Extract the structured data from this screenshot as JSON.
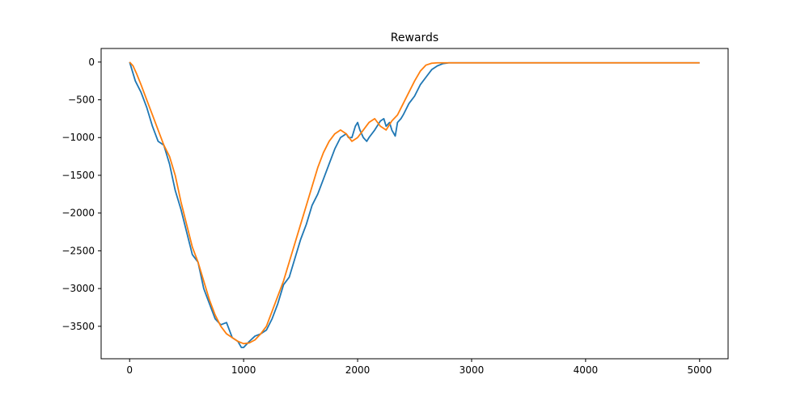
{
  "chart_data": {
    "type": "line",
    "title": "Rewards",
    "xlabel": "",
    "ylabel": "",
    "xlim": [
      -250,
      5250
    ],
    "ylim": [
      -3930,
      180
    ],
    "xticks": [
      0,
      1000,
      2000,
      3000,
      4000,
      5000
    ],
    "yticks": [
      0,
      -500,
      -1000,
      -1500,
      -2000,
      -2500,
      -3000,
      -3500
    ],
    "xtick_labels": [
      "0",
      "1000",
      "2000",
      "3000",
      "4000",
      "5000"
    ],
    "ytick_labels": [
      "0",
      "−500",
      "−1000",
      "−1500",
      "−2000",
      "−2500",
      "−3000",
      "−3500"
    ],
    "grid": false,
    "legend": false,
    "series": [
      {
        "color": "#1f77b4",
        "x": [
          0,
          50,
          100,
          150,
          200,
          250,
          280,
          300,
          350,
          400,
          450,
          500,
          550,
          600,
          650,
          700,
          750,
          800,
          850,
          900,
          950,
          980,
          1000,
          1050,
          1100,
          1150,
          1200,
          1250,
          1300,
          1350,
          1400,
          1450,
          1500,
          1550,
          1600,
          1650,
          1700,
          1750,
          1800,
          1850,
          1900,
          1920,
          1950,
          1980,
          2000,
          2020,
          2050,
          2080,
          2100,
          2150,
          2200,
          2230,
          2250,
          2280,
          2300,
          2330,
          2350,
          2380,
          2400,
          2450,
          2500,
          2550,
          2600,
          2650,
          2700,
          2750,
          2800,
          3000,
          3500,
          4000,
          4500,
          5000
        ],
        "y": [
          0,
          -250,
          -400,
          -600,
          -850,
          -1050,
          -1080,
          -1100,
          -1350,
          -1700,
          -1950,
          -2250,
          -2550,
          -2650,
          -3000,
          -3200,
          -3400,
          -3480,
          -3450,
          -3650,
          -3700,
          -3780,
          -3780,
          -3700,
          -3630,
          -3600,
          -3550,
          -3400,
          -3200,
          -2950,
          -2850,
          -2600,
          -2350,
          -2150,
          -1900,
          -1750,
          -1550,
          -1350,
          -1150,
          -1000,
          -950,
          -1000,
          -1000,
          -850,
          -800,
          -900,
          -1000,
          -1050,
          -1000,
          -900,
          -780,
          -750,
          -850,
          -800,
          -900,
          -980,
          -800,
          -750,
          -700,
          -550,
          -450,
          -300,
          -200,
          -100,
          -50,
          -20,
          -10,
          -10,
          -10,
          -10,
          -10,
          -10
        ]
      },
      {
        "color": "#ff7f0e",
        "x": [
          0,
          30,
          60,
          100,
          150,
          200,
          250,
          300,
          350,
          400,
          450,
          500,
          550,
          600,
          650,
          700,
          750,
          800,
          850,
          900,
          950,
          1000,
          1050,
          1100,
          1150,
          1200,
          1250,
          1300,
          1350,
          1400,
          1450,
          1500,
          1550,
          1600,
          1650,
          1700,
          1750,
          1800,
          1850,
          1900,
          1950,
          2000,
          2050,
          2100,
          2150,
          2200,
          2250,
          2300,
          2350,
          2400,
          2450,
          2500,
          2550,
          2600,
          2650,
          2700,
          2750,
          2800,
          3000,
          3500,
          4000,
          4500,
          5000
        ],
        "y": [
          0,
          -50,
          -150,
          -300,
          -500,
          -700,
          -900,
          -1100,
          -1250,
          -1500,
          -1850,
          -2150,
          -2450,
          -2650,
          -2900,
          -3150,
          -3350,
          -3500,
          -3600,
          -3650,
          -3700,
          -3730,
          -3720,
          -3680,
          -3600,
          -3500,
          -3300,
          -3100,
          -2900,
          -2650,
          -2400,
          -2150,
          -1900,
          -1650,
          -1400,
          -1200,
          -1050,
          -950,
          -900,
          -950,
          -1050,
          -1000,
          -900,
          -800,
          -750,
          -850,
          -900,
          -780,
          -700,
          -550,
          -400,
          -250,
          -120,
          -40,
          -15,
          -10,
          -10,
          -10,
          -10,
          -10,
          -10,
          -10,
          -10
        ]
      }
    ]
  }
}
